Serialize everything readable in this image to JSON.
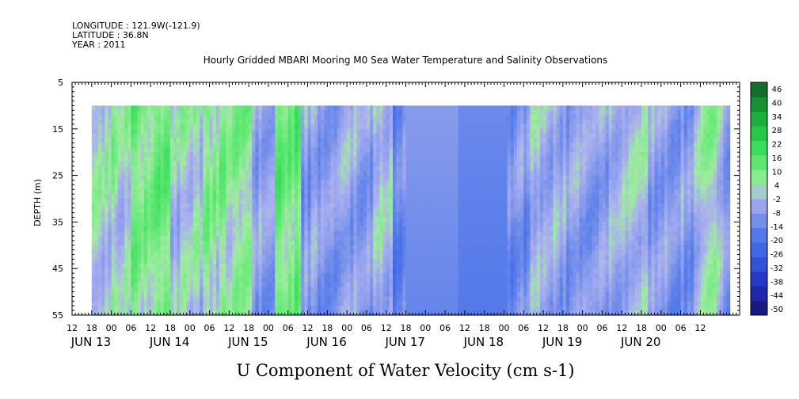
{
  "header": {
    "longitude": "LONGITUDE : 121.9W(-121.9)",
    "latitude": "LATITUDE : 36.8N",
    "year": "YEAR : 2011",
    "title": "Hourly Gridded MBARI Mooring M0 Sea Water Temperature and Salinity Observations"
  },
  "chart_data": {
    "type": "heatmap",
    "title": "Hourly Gridded MBARI Mooring M0 Sea Water Temperature and Salinity Observations",
    "xlabel": "U Component of Water Velocity (cm s-1)",
    "ylabel": "DEPTH (m)",
    "x_range_hours": [
      0,
      204
    ],
    "x_start": "JUN 13 12:00",
    "x_end": "JUN 21 00:00",
    "data_time_range_hours": [
      6,
      201
    ],
    "data_depth_range": [
      10,
      55
    ],
    "ylim": [
      55,
      5
    ],
    "y_ticks": [
      5,
      15,
      25,
      35,
      45,
      55
    ],
    "hour_tick_labels": [
      "12",
      "18",
      "00",
      "06",
      "12",
      "18",
      "00",
      "06",
      "12",
      "18",
      "00",
      "06",
      "12",
      "18",
      "00",
      "06",
      "12",
      "18",
      "00",
      "06",
      "12",
      "18",
      "00",
      "06",
      "12",
      "18",
      "00",
      "06",
      "12",
      "18",
      "00",
      "06",
      "12"
    ],
    "day_labels": [
      {
        "label": "JUN 13",
        "hour": 0
      },
      {
        "label": "JUN 14",
        "hour": 24
      },
      {
        "label": "JUN 15",
        "hour": 48
      },
      {
        "label": "JUN 16",
        "hour": 72
      },
      {
        "label": "JUN 17",
        "hour": 96
      },
      {
        "label": "JUN 18",
        "hour": 120
      },
      {
        "label": "JUN 19",
        "hour": 144
      },
      {
        "label": "JUN 20",
        "hour": 168
      }
    ],
    "colorbar": {
      "levels": [
        -50,
        -44,
        -38,
        -32,
        -26,
        -20,
        -14,
        -8,
        -2,
        4,
        10,
        16,
        22,
        28,
        34,
        40,
        46
      ],
      "labels": [
        "46",
        "40",
        "34",
        "28",
        "22",
        "16",
        "10",
        "4",
        "-2",
        "-8",
        "-14",
        "-20",
        "-26",
        "-32",
        "-38",
        "-44",
        "-50"
      ]
    },
    "regimes": [
      {
        "start": 6,
        "end": 18,
        "value": 4
      },
      {
        "start": 18,
        "end": 30,
        "value": 10
      },
      {
        "start": 30,
        "end": 40,
        "value": 2
      },
      {
        "start": 40,
        "end": 55,
        "value": 8
      },
      {
        "start": 55,
        "end": 62,
        "value": -4
      },
      {
        "start": 62,
        "end": 70,
        "value": 12
      },
      {
        "start": 70,
        "end": 80,
        "value": -6
      },
      {
        "start": 80,
        "end": 92,
        "value": -4
      },
      {
        "start": 92,
        "end": 98,
        "value": 2
      },
      {
        "start": 98,
        "end": 102,
        "value": -12
      },
      {
        "start": 102,
        "end": 118,
        "value": -8
      },
      {
        "start": 118,
        "end": 133,
        "value": -12
      },
      {
        "start": 133,
        "end": 140,
        "value": -8
      },
      {
        "start": 140,
        "end": 150,
        "value": -2
      },
      {
        "start": 150,
        "end": 164,
        "value": -5
      },
      {
        "start": 164,
        "end": 176,
        "value": 0
      },
      {
        "start": 176,
        "end": 190,
        "value": -6
      },
      {
        "start": 190,
        "end": 198,
        "value": 2
      },
      {
        "start": 198,
        "end": 201,
        "value": -4
      }
    ]
  }
}
